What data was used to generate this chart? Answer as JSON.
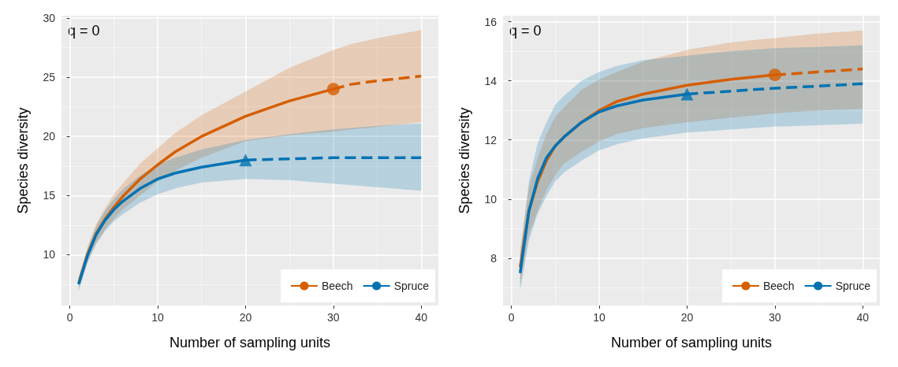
{
  "chart_data": [
    {
      "type": "line",
      "xlabel": "Number of sampling units",
      "ylabel": "Species diversity",
      "annotations": [
        "q = 0"
      ],
      "xlim": [
        -0.95,
        41.95
      ],
      "xticks": [
        0,
        10,
        20,
        30,
        40
      ],
      "ylim": [
        5.7,
        30.2
      ],
      "yticks": [
        10,
        15,
        20,
        25,
        30
      ],
      "grid": true,
      "legend": "bottom right",
      "series": [
        {
          "name": "Beech",
          "color": "#d55e00",
          "line_style": "solid",
          "x": [
            1,
            2,
            3,
            4,
            5,
            6,
            8,
            10,
            12,
            15,
            20,
            25,
            30
          ],
          "values": [
            7.6,
            10,
            11.8,
            13,
            14,
            14.9,
            16.4,
            17.6,
            18.7,
            20,
            21.7,
            23,
            24
          ],
          "lower": [
            7.2,
            9.4,
            11,
            12.1,
            13,
            13.8,
            15,
            16.2,
            17.1,
            18.2,
            19.6,
            20.1,
            20.4
          ],
          "upper": [
            8,
            10.6,
            12.6,
            13.9,
            15.1,
            16,
            17.7,
            19,
            20.3,
            21.8,
            23.8,
            25.8,
            27.3
          ]
        },
        {
          "color": "#d55e00",
          "line_style": "dashed",
          "x": [
            30,
            32,
            35,
            40
          ],
          "values": [
            24,
            24.4,
            24.7,
            25.1
          ],
          "lower": [
            20.4,
            20.6,
            20.8,
            21.2
          ],
          "upper": [
            27.3,
            27.8,
            28.3,
            29
          ]
        },
        {
          "type": "scatter",
          "color": "#d55e00",
          "marker": "circle",
          "x": [
            30
          ],
          "values": [
            24
          ]
        },
        {
          "name": "Spruce",
          "color": "#0072b2",
          "line_style": "solid",
          "x": [
            1,
            2,
            3,
            4,
            5,
            6,
            8,
            10,
            12,
            15,
            20
          ],
          "values": [
            7.5,
            9.9,
            11.7,
            12.9,
            13.8,
            14.5,
            15.6,
            16.4,
            16.9,
            17.4,
            18
          ],
          "lower": [
            6.9,
            9.3,
            10.9,
            12,
            12.8,
            13.4,
            14.4,
            15.1,
            15.6,
            16.1,
            16.4
          ],
          "upper": [
            8.1,
            10.5,
            12.4,
            13.7,
            14.7,
            15.5,
            16.7,
            17.6,
            18.2,
            18.9,
            19.7
          ]
        },
        {
          "color": "#0072b2",
          "line_style": "dashed",
          "x": [
            20,
            25,
            30,
            35,
            40
          ],
          "values": [
            18,
            18.1,
            18.2,
            18.2,
            18.2
          ],
          "lower": [
            16.4,
            16.3,
            16,
            15.7,
            15.4
          ],
          "upper": [
            19.7,
            20.2,
            20.6,
            20.9,
            21.1
          ]
        },
        {
          "type": "scatter",
          "color": "#0072b2",
          "marker": "triangle",
          "x": [
            20
          ],
          "values": [
            18
          ]
        }
      ]
    },
    {
      "type": "line",
      "xlabel": "Number of sampling units",
      "ylabel": "Species diversity",
      "annotations": [
        "q = 0"
      ],
      "xlim": [
        -0.95,
        41.95
      ],
      "xticks": [
        0,
        10,
        20,
        30,
        40
      ],
      "ylim": [
        6.4,
        16.2
      ],
      "yticks": [
        8,
        10,
        12,
        14,
        16
      ],
      "grid": true,
      "legend": "bottom right",
      "series": [
        {
          "name": "Beech",
          "color": "#d55e00",
          "line_style": "solid",
          "x": [
            1,
            2,
            3,
            4,
            5,
            6,
            8,
            10,
            12,
            15,
            20,
            25,
            30
          ],
          "values": [
            7.7,
            9.6,
            10.6,
            11.3,
            11.8,
            12.1,
            12.6,
            13,
            13.3,
            13.55,
            13.85,
            14.05,
            14.2
          ],
          "lower": [
            7.1,
            8.8,
            9.6,
            10.3,
            10.8,
            11.2,
            11.6,
            11.95,
            12.2,
            12.4,
            12.6,
            12.75,
            12.9
          ],
          "upper": [
            8.3,
            10.4,
            11.4,
            12.2,
            12.8,
            13.1,
            13.7,
            14.05,
            14.3,
            14.65,
            15.05,
            15.3,
            15.45
          ]
        },
        {
          "color": "#d55e00",
          "line_style": "dashed",
          "x": [
            30,
            35,
            40
          ],
          "values": [
            14.2,
            14.3,
            14.4
          ],
          "lower": [
            12.9,
            13,
            13.05
          ],
          "upper": [
            15.45,
            15.6,
            15.7
          ]
        },
        {
          "type": "scatter",
          "color": "#d55e00",
          "marker": "circle",
          "x": [
            30
          ],
          "values": [
            14.2
          ]
        },
        {
          "name": "Spruce",
          "color": "#0072b2",
          "line_style": "solid",
          "x": [
            1,
            2,
            3,
            4,
            5,
            6,
            8,
            10,
            12,
            15,
            20
          ],
          "values": [
            7.5,
            9.6,
            10.7,
            11.4,
            11.8,
            12.1,
            12.6,
            12.95,
            13.15,
            13.35,
            13.55
          ],
          "lower": [
            6.9,
            8.6,
            9.5,
            10.1,
            10.6,
            10.9,
            11.3,
            11.65,
            11.85,
            12.05,
            12.25
          ],
          "upper": [
            8.1,
            10.6,
            11.9,
            12.6,
            13.2,
            13.5,
            14,
            14.3,
            14.5,
            14.7,
            14.85
          ]
        },
        {
          "color": "#0072b2",
          "line_style": "dashed",
          "x": [
            20,
            25,
            30,
            35,
            40
          ],
          "values": [
            13.55,
            13.65,
            13.75,
            13.82,
            13.9
          ],
          "lower": [
            12.25,
            12.35,
            12.45,
            12.5,
            12.55
          ],
          "upper": [
            14.85,
            15,
            15.1,
            15.15,
            15.2
          ]
        },
        {
          "type": "scatter",
          "color": "#0072b2",
          "marker": "triangle",
          "x": [
            20
          ],
          "values": [
            13.55
          ]
        }
      ]
    }
  ]
}
